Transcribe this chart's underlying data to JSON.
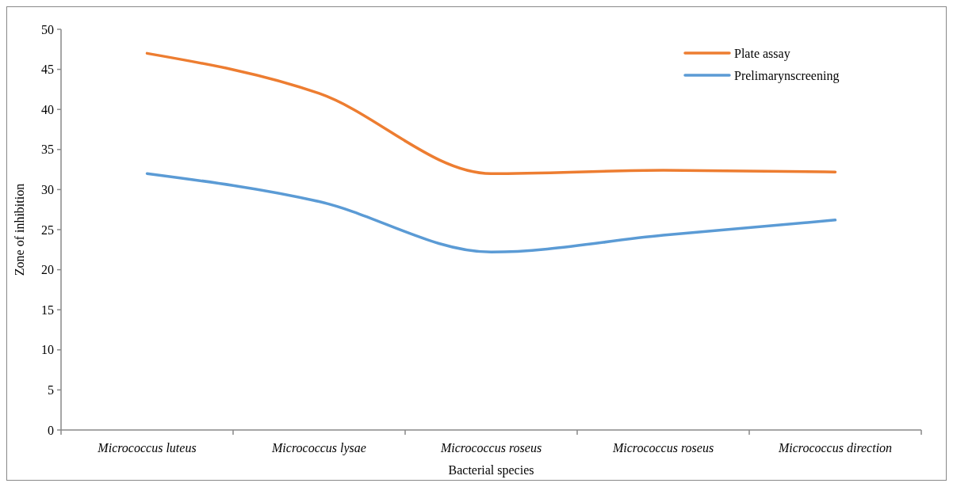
{
  "chart_data": {
    "type": "line",
    "xlabel": "Bacterial species",
    "ylabel": "Zone of inhibition",
    "categories": [
      "Micrococcus luteus",
      "Micrococcus lysae",
      "Micrococcus roseus",
      "Micrococcus roseus",
      "Micrococcus direction"
    ],
    "series": [
      {
        "name": "Plate assay",
        "color": "#ed7d31",
        "values": [
          47,
          42,
          32,
          32.4,
          32.2
        ]
      },
      {
        "name": "Prelimarynscreening",
        "color": "#5b9bd5",
        "values": [
          32,
          28.5,
          22.2,
          24.3,
          26.2
        ]
      }
    ],
    "ylim": [
      0,
      50
    ],
    "yticks": [
      0,
      5,
      10,
      15,
      20,
      25,
      30,
      35,
      40,
      45,
      50
    ],
    "legend": "top right",
    "grid": false,
    "marker": "none",
    "line_style": "solid"
  }
}
